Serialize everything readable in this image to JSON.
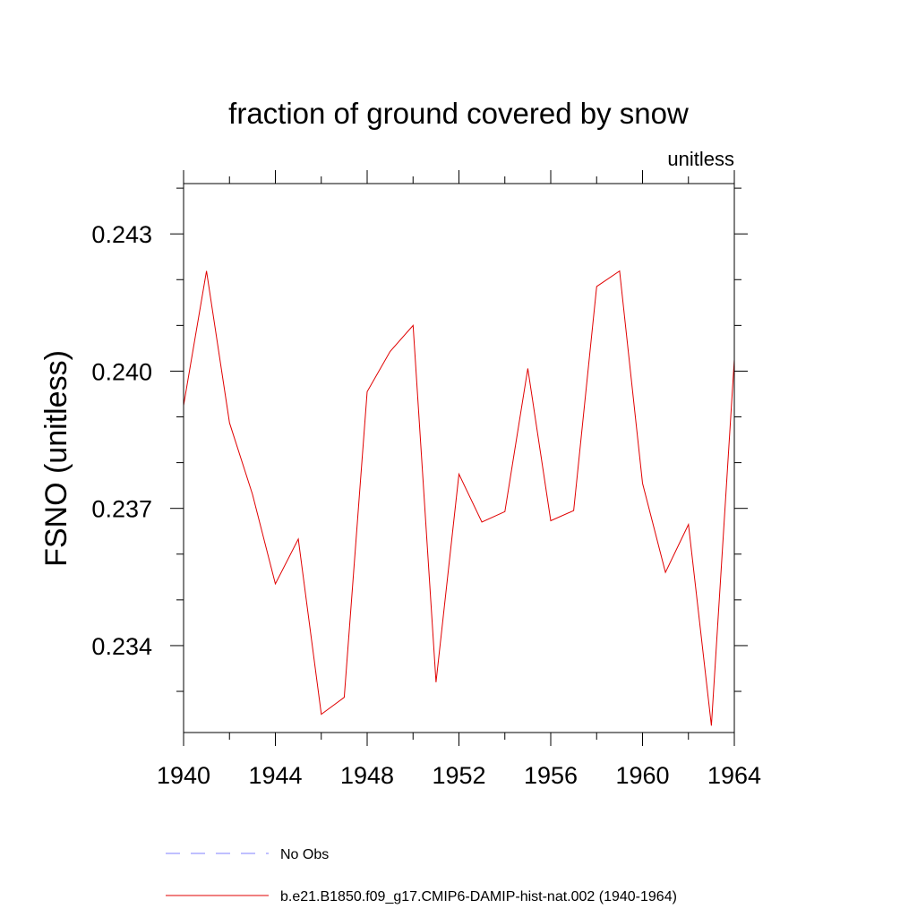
{
  "chart_data": {
    "type": "line",
    "title": "fraction of ground covered by snow",
    "units_label": "unitless",
    "ylabel": "FSNO  (unitless)",
    "xlabel": "",
    "xlim": [
      1940,
      1964
    ],
    "ylim": [
      0.2321,
      0.2441
    ],
    "x_ticks": [
      1940,
      1944,
      1948,
      1952,
      1956,
      1960,
      1964
    ],
    "y_ticks": [
      0.234,
      0.237,
      0.24,
      0.243
    ],
    "y_tick_labels": [
      "0.234",
      "0.237",
      "0.240",
      "0.243"
    ],
    "grid": false,
    "legend_placement": "bottom",
    "series": [
      {
        "name": "No Obs",
        "color": "#8080ff",
        "dash": "dashed",
        "x": [],
        "values": []
      },
      {
        "name": "b.e21.B1850.f09_g17.CMIP6-DAMIP-hist-nat.002 (1940-1964)",
        "color": "#e00000",
        "dash": "solid",
        "x": [
          1940,
          1941,
          1942,
          1943,
          1944,
          1945,
          1946,
          1947,
          1948,
          1949,
          1950,
          1951,
          1952,
          1953,
          1954,
          1955,
          1956,
          1957,
          1958,
          1959,
          1960,
          1961,
          1962,
          1963,
          1964
        ],
        "values": [
          0.23925,
          0.24219,
          0.23887,
          0.23731,
          0.23535,
          0.23633,
          0.2325,
          0.23287,
          0.23955,
          0.24043,
          0.241,
          0.2332,
          0.23775,
          0.2367,
          0.23693,
          0.24006,
          0.23673,
          0.23695,
          0.24185,
          0.24219,
          0.23755,
          0.2356,
          0.23665,
          0.23225,
          0.24025
        ]
      }
    ]
  }
}
